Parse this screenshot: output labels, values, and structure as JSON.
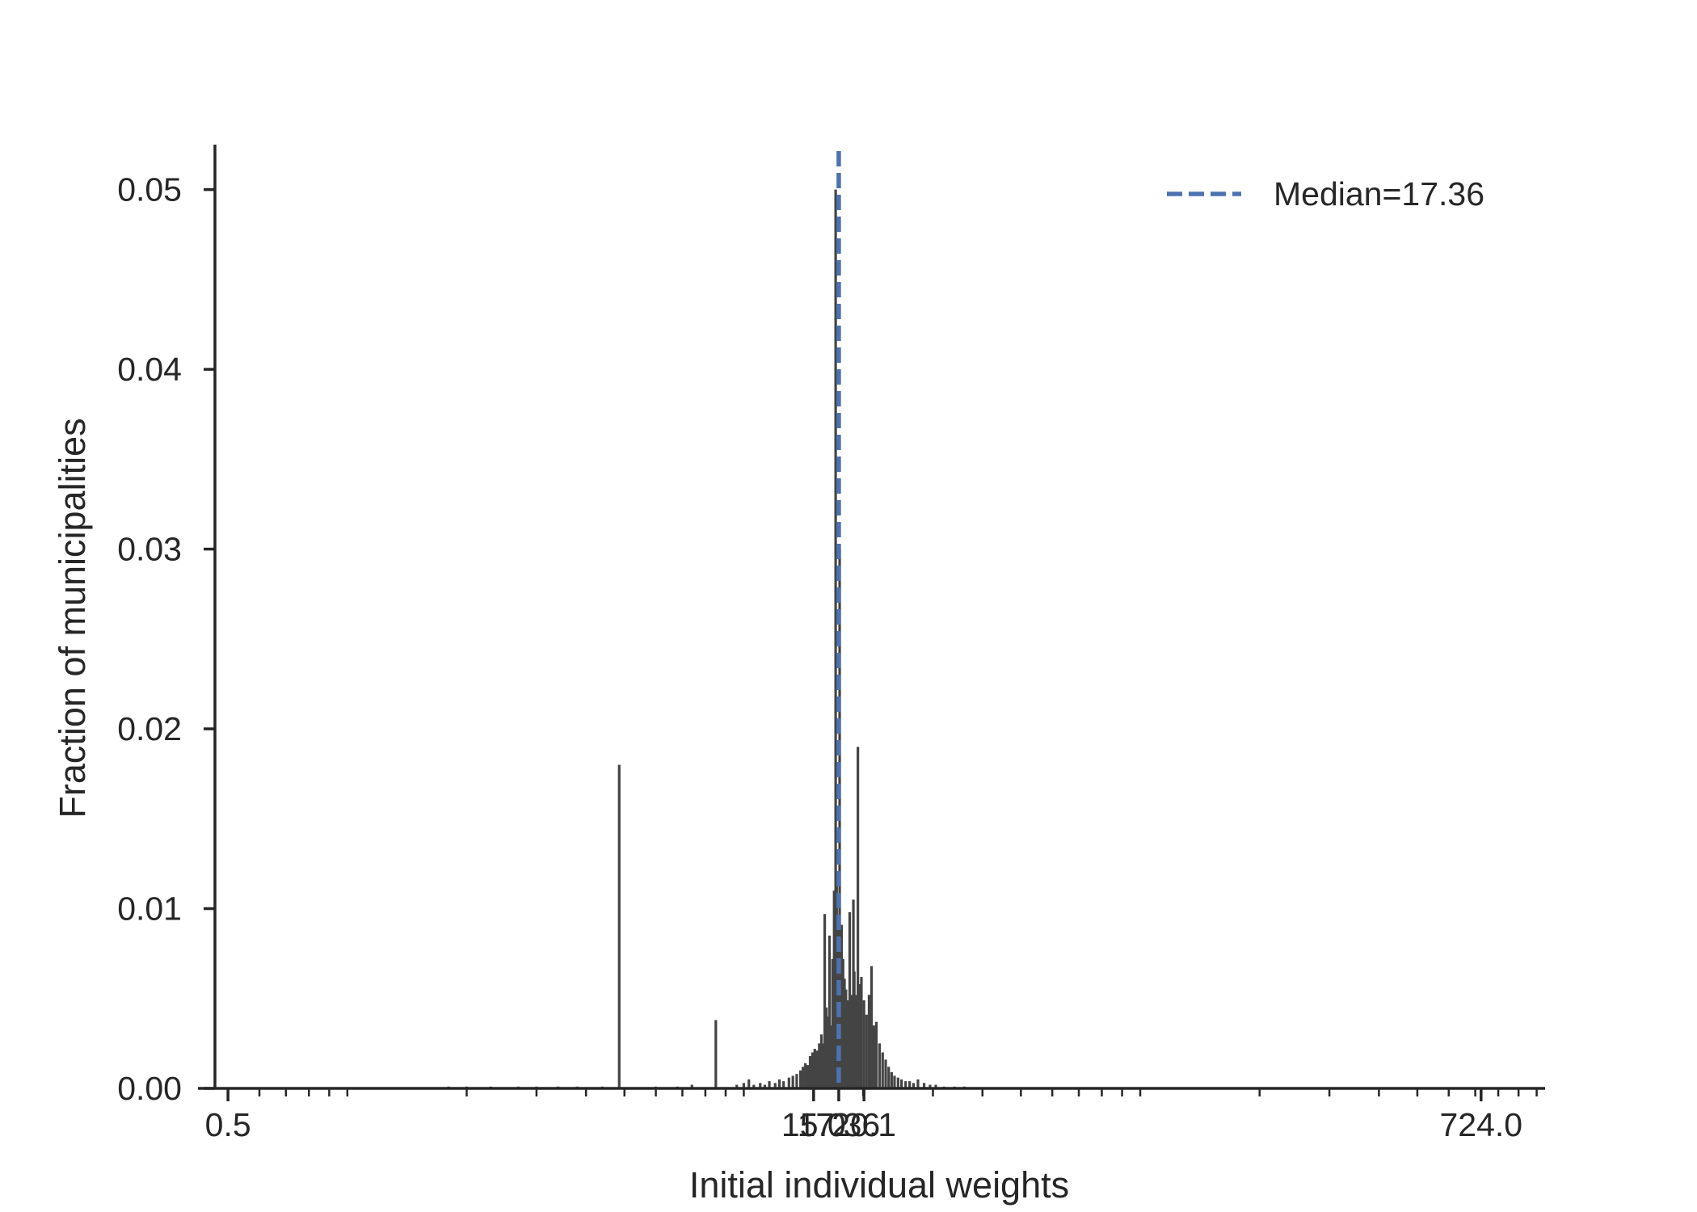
{
  "chart_data": {
    "type": "bar",
    "xlabel": "Initial individual weights",
    "ylabel": "Fraction of municipalities",
    "x_scale": "log",
    "xlim": [
      0.42,
      1050
    ],
    "ylim": [
      0,
      0.0525
    ],
    "x_ticks": [
      {
        "value": 0.5,
        "label": "0.5"
      },
      {
        "value": 15.0,
        "label": "15.0"
      },
      {
        "value": 17.36,
        "label": "17.36"
      },
      {
        "value": 20.1,
        "label": "20.1"
      },
      {
        "value": 724.0,
        "label": "724.0"
      }
    ],
    "y_ticks": [
      {
        "value": 0.0,
        "label": "0.00"
      },
      {
        "value": 0.01,
        "label": "0.01"
      },
      {
        "value": 0.02,
        "label": "0.02"
      },
      {
        "value": 0.03,
        "label": "0.03"
      },
      {
        "value": 0.04,
        "label": "0.04"
      },
      {
        "value": 0.05,
        "label": "0.05"
      }
    ],
    "bar_color": "#444444",
    "median": {
      "value": 17.36,
      "label": "Median=17.36",
      "color": "#4c72b0",
      "style": "dashed"
    },
    "legend_position": "top-right",
    "grid": false,
    "bars": [
      [
        1.8,
        0.0001
      ],
      [
        2.0,
        0.0001
      ],
      [
        2.3,
        0.0001
      ],
      [
        2.7,
        0.0001
      ],
      [
        3.0,
        0.0001
      ],
      [
        3.4,
        0.0001
      ],
      [
        3.8,
        0.0001
      ],
      [
        4.4,
        0.0001
      ],
      [
        4.85,
        0.018
      ],
      [
        6.0,
        0.0001
      ],
      [
        6.8,
        0.0001
      ],
      [
        7.4,
        0.0002
      ],
      [
        8.5,
        0.0038
      ],
      [
        9.6,
        0.0002
      ],
      [
        10.0,
        0.0003
      ],
      [
        10.3,
        0.0005
      ],
      [
        10.6,
        0.0002
      ],
      [
        11.0,
        0.0003
      ],
      [
        11.3,
        0.0002
      ],
      [
        11.6,
        0.0004
      ],
      [
        12.0,
        0.0003
      ],
      [
        12.3,
        0.0005
      ],
      [
        12.6,
        0.0004
      ],
      [
        13.0,
        0.0006
      ],
      [
        13.3,
        0.0007
      ],
      [
        13.6,
        0.0008
      ],
      [
        13.9,
        0.001
      ],
      [
        14.1,
        0.0012
      ],
      [
        14.3,
        0.0014
      ],
      [
        14.5,
        0.0013
      ],
      [
        14.7,
        0.0018
      ],
      [
        14.9,
        0.002
      ],
      [
        15.1,
        0.0022
      ],
      [
        15.3,
        0.0021
      ],
      [
        15.5,
        0.0025
      ],
      [
        15.7,
        0.003
      ],
      [
        15.85,
        0.0025
      ],
      [
        16.0,
        0.0097
      ],
      [
        16.15,
        0.0045
      ],
      [
        16.3,
        0.004
      ],
      [
        16.45,
        0.0085
      ],
      [
        16.6,
        0.0035
      ],
      [
        16.75,
        0.0072
      ],
      [
        16.9,
        0.011
      ],
      [
        17.0,
        0.0055
      ],
      [
        17.05,
        0.05
      ],
      [
        17.15,
        0.0118
      ],
      [
        17.25,
        0.0065
      ],
      [
        17.36,
        0.0095
      ],
      [
        17.45,
        0.03
      ],
      [
        17.55,
        0.0082
      ],
      [
        17.65,
        0.0091
      ],
      [
        17.8,
        0.0072
      ],
      [
        17.95,
        0.0061
      ],
      [
        18.1,
        0.0055
      ],
      [
        18.3,
        0.0049
      ],
      [
        18.5,
        0.0098
      ],
      [
        18.7,
        0.0052
      ],
      [
        18.9,
        0.0105
      ],
      [
        19.0,
        0.0065
      ],
      [
        19.2,
        0.0052
      ],
      [
        19.4,
        0.019
      ],
      [
        19.6,
        0.0058
      ],
      [
        19.8,
        0.0062
      ],
      [
        20.1,
        0.0049
      ],
      [
        20.4,
        0.0041
      ],
      [
        20.7,
        0.0052
      ],
      [
        21.0,
        0.0068
      ],
      [
        21.3,
        0.0035
      ],
      [
        21.6,
        0.0037
      ],
      [
        22.0,
        0.0025
      ],
      [
        22.4,
        0.002
      ],
      [
        22.8,
        0.0016
      ],
      [
        23.2,
        0.0012
      ],
      [
        23.6,
        0.0009
      ],
      [
        24.0,
        0.0007
      ],
      [
        24.5,
        0.0006
      ],
      [
        25.0,
        0.0005
      ],
      [
        25.6,
        0.0004
      ],
      [
        26.2,
        0.0004
      ],
      [
        26.8,
        0.0003
      ],
      [
        27.5,
        0.0005
      ],
      [
        28.5,
        0.0003
      ],
      [
        29.5,
        0.0002
      ],
      [
        30.5,
        0.0002
      ],
      [
        32.0,
        0.0001
      ],
      [
        34.0,
        0.0001
      ],
      [
        36.0,
        0.0001
      ]
    ]
  }
}
